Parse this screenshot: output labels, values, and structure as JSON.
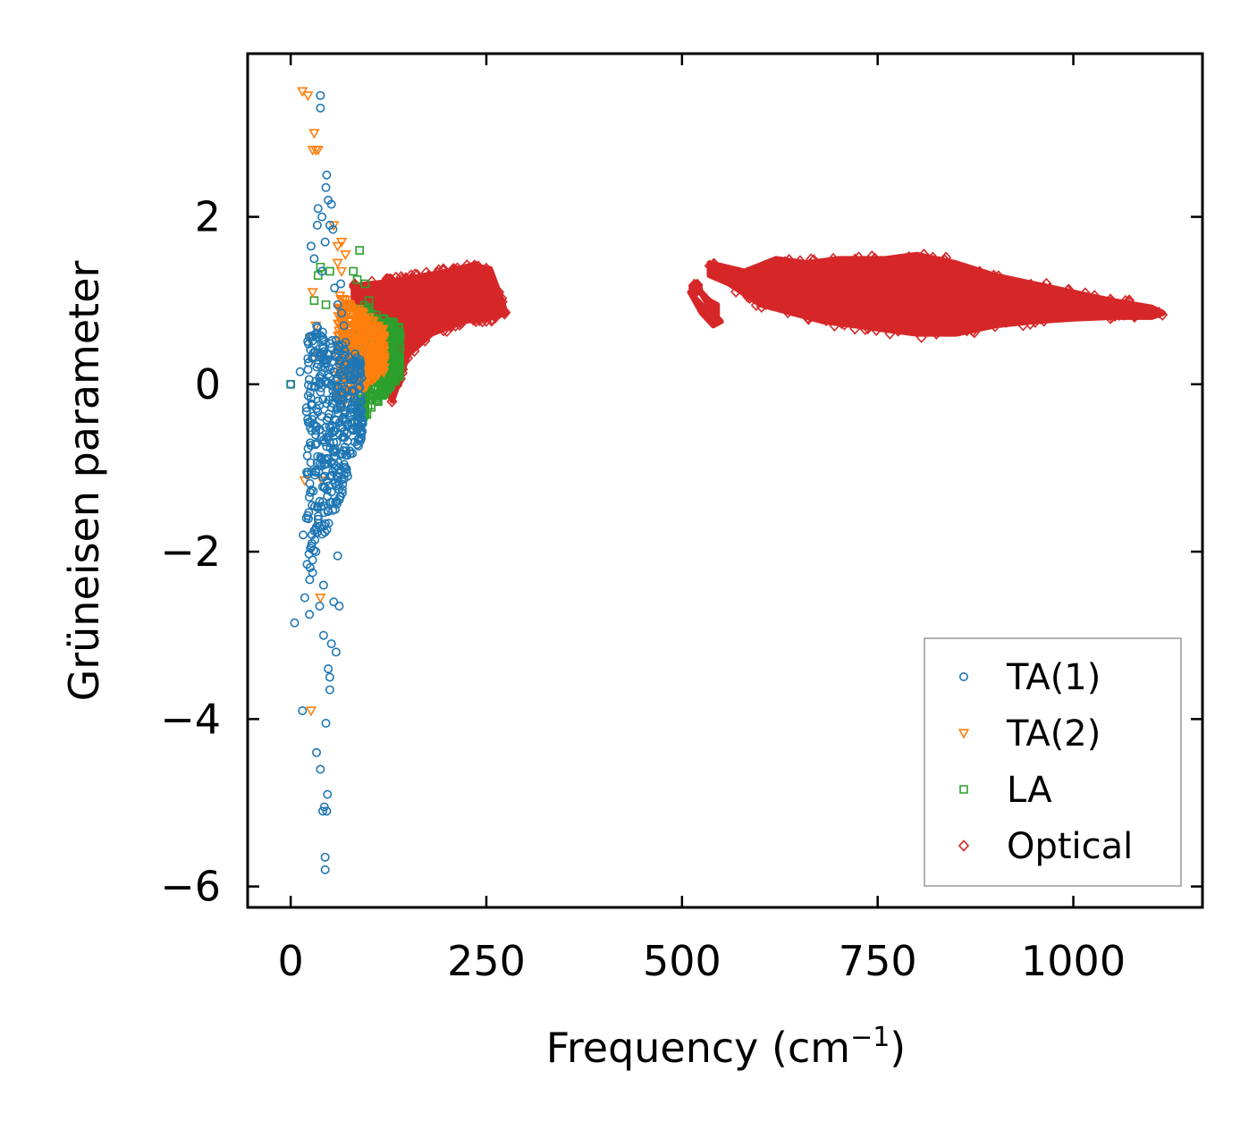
{
  "chart_data": {
    "type": "scatter",
    "title": "",
    "xlabel": "Frequency (cm",
    "xlabel_sup": "−1",
    "xlabel_close": ")",
    "ylabel": "Grüneisen parameter",
    "xlim": [
      -55,
      1165
    ],
    "ylim": [
      -6.25,
      3.95
    ],
    "xticks": [
      0,
      250,
      500,
      750,
      1000
    ],
    "xtick_labels": [
      "0",
      "250",
      "500",
      "750",
      "1000"
    ],
    "yticks": [
      -6,
      -4,
      -2,
      0,
      2
    ],
    "ytick_labels": [
      "−6",
      "−4",
      "−2",
      "0",
      "2"
    ],
    "grid": false,
    "legend_position": "bottom-right",
    "series": [
      {
        "name": "TA(1)",
        "color": "#1f77b4",
        "marker": "circle",
        "points": [
          [
            0,
            0
          ],
          [
            5,
            -2.85
          ],
          [
            12,
            0.15
          ],
          [
            15,
            -3.9
          ],
          [
            16,
            -1.8
          ],
          [
            18,
            -2.55
          ],
          [
            20,
            -1.6
          ],
          [
            22,
            -1.05
          ],
          [
            24,
            -2.75
          ],
          [
            25,
            -0.7
          ],
          [
            26,
            1.65
          ],
          [
            28,
            -2.25
          ],
          [
            28,
            -2.1
          ],
          [
            30,
            1.5
          ],
          [
            30,
            -1.75
          ],
          [
            32,
            -0.55
          ],
          [
            33,
            -4.4
          ],
          [
            34,
            1.9
          ],
          [
            35,
            2.1
          ],
          [
            35,
            -0.2
          ],
          [
            37,
            -2.65
          ],
          [
            37,
            -1.4
          ],
          [
            38,
            -4.6
          ],
          [
            38,
            3.45
          ],
          [
            38,
            3.3
          ],
          [
            40,
            2.0
          ],
          [
            40,
            1.35
          ],
          [
            40,
            -0.9
          ],
          [
            41,
            -5.1
          ],
          [
            42,
            -3.0
          ],
          [
            42,
            -2.4
          ],
          [
            43,
            -5.05
          ],
          [
            44,
            -5.65
          ],
          [
            44,
            -5.8
          ],
          [
            44,
            1.7
          ],
          [
            45,
            2.35
          ],
          [
            45,
            -4.05
          ],
          [
            46,
            2.5
          ],
          [
            46,
            -5.1
          ],
          [
            47,
            -4.9
          ],
          [
            48,
            -3.4
          ],
          [
            48,
            2.2
          ],
          [
            50,
            1.9
          ],
          [
            50,
            -3.5
          ],
          [
            50,
            -3.65
          ],
          [
            52,
            2.15
          ],
          [
            52,
            -3.1
          ],
          [
            54,
            1.85
          ],
          [
            55,
            -2.6
          ],
          [
            56,
            1.15
          ],
          [
            58,
            -3.2
          ],
          [
            60,
            -2.05
          ],
          [
            60,
            0.95
          ],
          [
            62,
            -2.65
          ],
          [
            64,
            1.2
          ],
          [
            65,
            0.85
          ],
          [
            66,
            -1.3
          ],
          [
            68,
            0.7
          ],
          [
            70,
            0.5
          ],
          [
            72,
            -0.85
          ],
          [
            75,
            0.2
          ],
          [
            78,
            -0.3
          ],
          [
            80,
            0.05
          ],
          [
            82,
            -0.45
          ],
          [
            85,
            -0.55
          ],
          [
            88,
            -0.35
          ],
          [
            90,
            -0.6
          ]
        ],
        "dense_region": {
          "x": [
            20,
            92
          ],
          "y_bottom_at_x_min": -2.5,
          "y_bottom_at_x_max": -0.6,
          "y_top_at_x_min": 0.8,
          "y_top_at_x_max": 0.3
        }
      },
      {
        "name": "TA(2)",
        "color": "#ff7f0e",
        "marker": "triangle-down",
        "points": [
          [
            15,
            3.5
          ],
          [
            22,
            3.45
          ],
          [
            28,
            2.8
          ],
          [
            30,
            3.0
          ],
          [
            32,
            2.8
          ],
          [
            35,
            2.8
          ],
          [
            28,
            1.1
          ],
          [
            32,
            0.7
          ],
          [
            36,
            0.35
          ],
          [
            40,
            -1.15
          ],
          [
            18,
            -1.15
          ],
          [
            26,
            -3.9
          ],
          [
            38,
            -2.55
          ],
          [
            60,
            1.65
          ],
          [
            65,
            1.7
          ],
          [
            70,
            1.55
          ],
          [
            55,
            1.9
          ],
          [
            60,
            1.45
          ],
          [
            65,
            1.35
          ],
          [
            25,
            0.55
          ],
          [
            30,
            0.3
          ]
        ],
        "dense_region": {
          "x": [
            60,
            120
          ],
          "y_bottom_at_x_min": -0.3,
          "y_bottom_at_x_max": 0.15,
          "y_top_at_x_min": 1.1,
          "y_top_at_x_max": 0.65
        }
      },
      {
        "name": "LA",
        "color": "#2ca02c",
        "marker": "square",
        "points": [
          [
            0,
            0
          ],
          [
            30,
            1.0
          ],
          [
            35,
            1.3
          ],
          [
            38,
            1.4
          ],
          [
            45,
            0.95
          ],
          [
            50,
            1.35
          ],
          [
            80,
            1.35
          ],
          [
            85,
            1.25
          ],
          [
            88,
            1.6
          ],
          [
            95,
            1.2
          ],
          [
            100,
            1.0
          ],
          [
            105,
            0.75
          ],
          [
            92,
            -0.45
          ]
        ],
        "dense_region": {
          "x": [
            85,
            140
          ],
          "y_bottom_at_x_min": -0.5,
          "y_bottom_at_x_max": 0.1,
          "y_top_at_x_min": 1.0,
          "y_top_at_x_max": 0.7
        }
      },
      {
        "name": "Optical",
        "color": "#d62728",
        "marker": "diamond",
        "bands": [
          {
            "upper": [
              [
                80,
                1.18
              ],
              [
                120,
                1.22
              ],
              [
                160,
                1.28
              ],
              [
                200,
                1.35
              ],
              [
                230,
                1.42
              ],
              [
                255,
                1.38
              ],
              [
                270,
                1.0
              ],
              [
                275,
                0.85
              ]
            ],
            "lower": [
              [
                80,
                0.95
              ],
              [
                110,
                0.15
              ],
              [
                130,
                -0.2
              ],
              [
                150,
                0.35
              ],
              [
                180,
                0.6
              ],
              [
                220,
                0.75
              ],
              [
                260,
                0.8
              ],
              [
                275,
                0.85
              ]
            ]
          },
          {
            "upper": [
              [
                520,
                1.15
              ],
              [
                535,
                1.0
              ],
              [
                545,
                0.95
              ],
              [
                545,
                0.8
              ],
              [
                530,
                0.9
              ],
              [
                515,
                1.05
              ]
            ],
            "lower": [
              [
                520,
                1.15
              ],
              [
                540,
                0.85
              ],
              [
                550,
                0.75
              ],
              [
                540,
                0.7
              ],
              [
                525,
                0.85
              ],
              [
                510,
                1.1
              ]
            ]
          },
          {
            "upper": [
              [
                535,
                1.45
              ],
              [
                580,
                1.35
              ],
              [
                620,
                1.5
              ],
              [
                660,
                1.45
              ],
              [
                700,
                1.5
              ],
              [
                760,
                1.5
              ],
              [
                800,
                1.55
              ],
              [
                850,
                1.45
              ],
              [
                900,
                1.3
              ],
              [
                950,
                1.2
              ],
              [
                1000,
                1.1
              ],
              [
                1050,
                1.0
              ],
              [
                1100,
                0.92
              ],
              [
                1115,
                0.85
              ]
            ],
            "lower": [
              [
                535,
                1.3
              ],
              [
                560,
                1.2
              ],
              [
                600,
                0.95
              ],
              [
                640,
                0.85
              ],
              [
                680,
                0.75
              ],
              [
                720,
                0.7
              ],
              [
                760,
                0.65
              ],
              [
                800,
                0.6
              ],
              [
                850,
                0.6
              ],
              [
                900,
                0.7
              ],
              [
                950,
                0.75
              ],
              [
                1000,
                0.78
              ],
              [
                1050,
                0.8
              ],
              [
                1100,
                0.8
              ],
              [
                1115,
                0.85
              ]
            ]
          }
        ]
      }
    ]
  }
}
